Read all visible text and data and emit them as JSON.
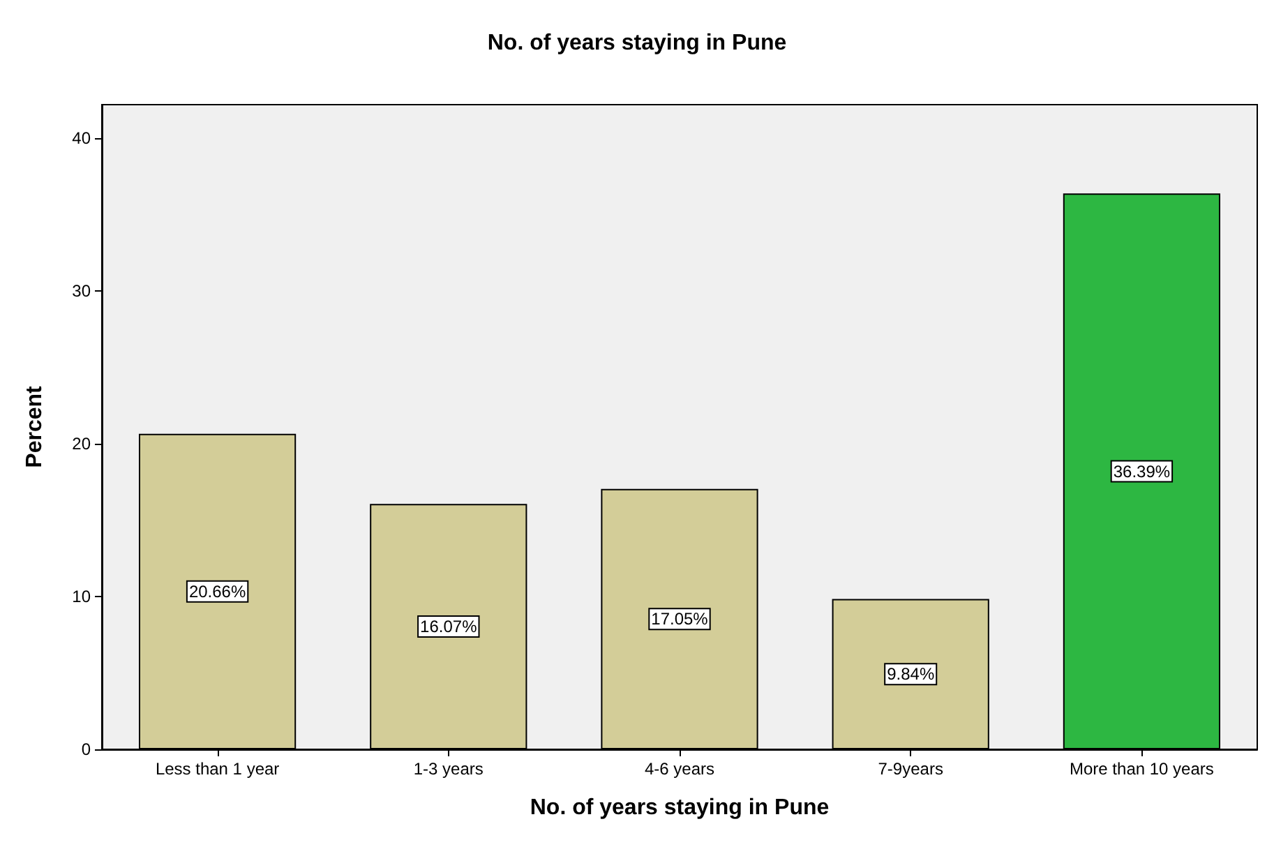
{
  "chart_data": {
    "type": "bar",
    "title": "No. of years staying in Pune",
    "xlabel": "No. of years staying in Pune",
    "ylabel": "Percent",
    "categories": [
      "Less than 1 year",
      "1-3 years",
      "4-6 years",
      "7-9years",
      "More than 10 years"
    ],
    "values": [
      20.66,
      16.07,
      17.05,
      9.84,
      36.39
    ],
    "value_labels": [
      "20.66%",
      "16.07%",
      "17.05%",
      "9.84%",
      "36.39%"
    ],
    "colors": [
      "#d3cd98",
      "#d3cd98",
      "#d3cd98",
      "#d3cd98",
      "#2db742"
    ],
    "ylim": [
      0,
      42.2
    ],
    "yticks": [
      0,
      10,
      20,
      30,
      40
    ],
    "grid": false
  }
}
